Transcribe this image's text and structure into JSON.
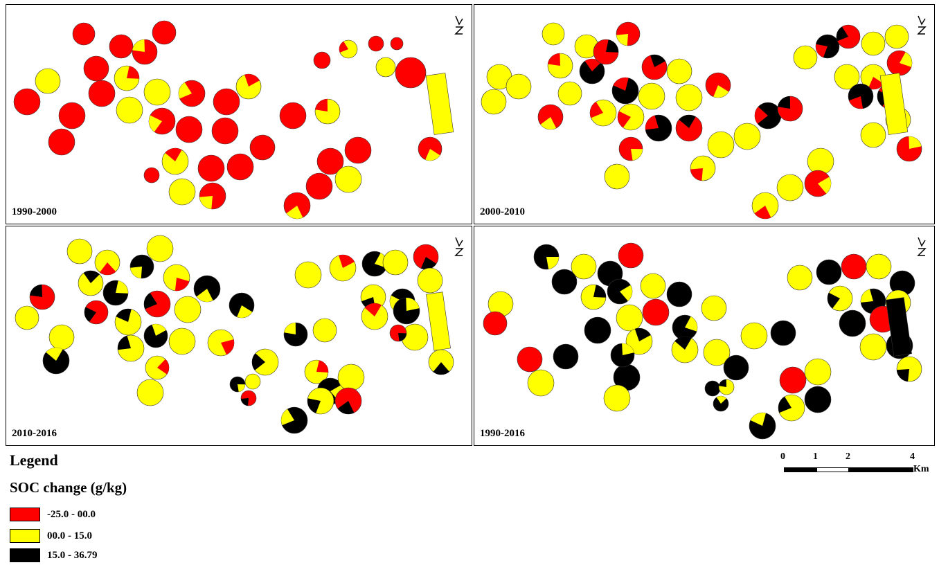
{
  "panels": [
    {
      "label": "1990-2000",
      "scheme": "A"
    },
    {
      "label": "2000-2010",
      "scheme": "B"
    },
    {
      "label": "2010-2016",
      "scheme": "C"
    },
    {
      "label": "1990-2016",
      "scheme": "D"
    }
  ],
  "legend": {
    "title": "Legend",
    "subtitle": "SOC change (g/kg)",
    "items": [
      {
        "label": "-25.0 - 00.0",
        "color": "#ff0000"
      },
      {
        "label": "00.0 - 15.0",
        "color": "#ffff00"
      },
      {
        "label": "15.0 - 36.79",
        "color": "#000000"
      }
    ]
  },
  "scalebar": {
    "ticks": [
      "0",
      "1",
      "2",
      "4"
    ],
    "unit": "Km"
  }
}
